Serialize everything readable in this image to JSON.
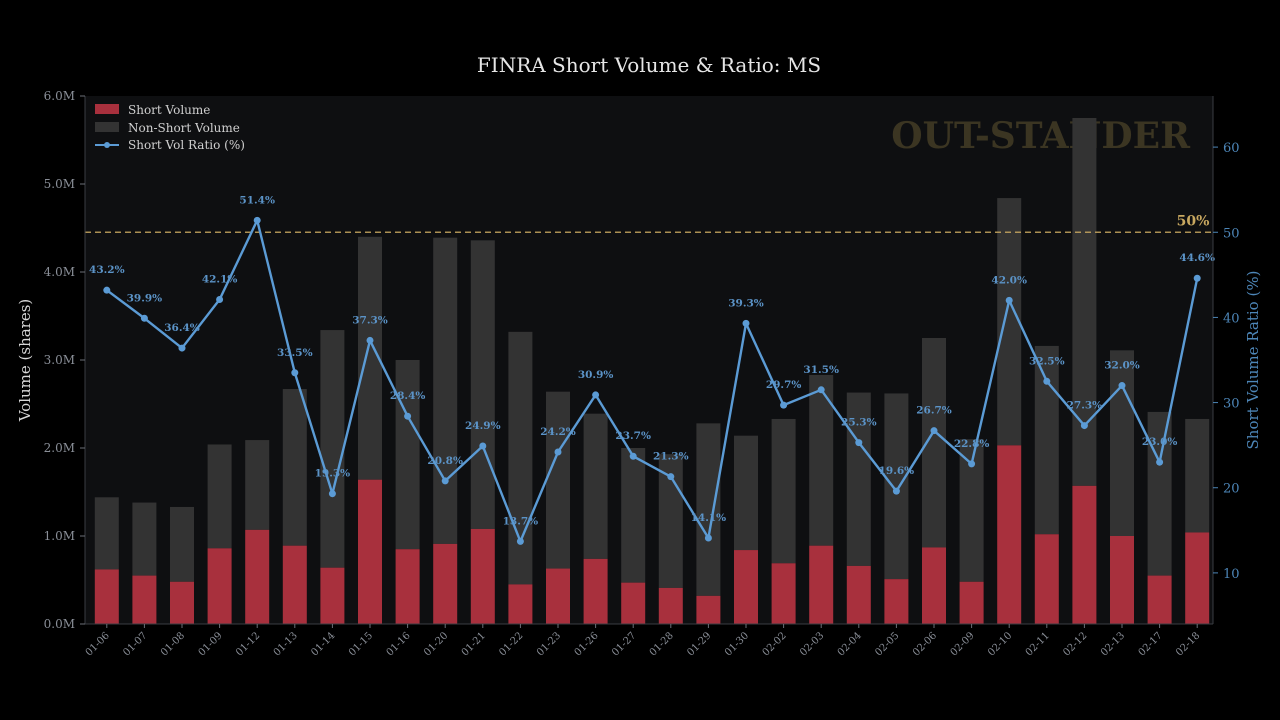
{
  "chart_data": {
    "type": "bar",
    "title": "FINRA Short Volume & Ratio: MS",
    "xlabel": "",
    "ylabel": "Volume (shares)",
    "y2label": "Short Volume Ratio (%)",
    "ylim": [
      0,
      6000000
    ],
    "y2lim": [
      4,
      66
    ],
    "y_ticks": [
      "0.0M",
      "1.0M",
      "2.0M",
      "3.0M",
      "4.0M",
      "5.0M",
      "6.0M"
    ],
    "y2_ticks": [
      "10",
      "20",
      "30",
      "40",
      "50",
      "60"
    ],
    "categories": [
      "01-06",
      "01-07",
      "01-08",
      "01-09",
      "01-12",
      "01-13",
      "01-14",
      "01-15",
      "01-16",
      "01-20",
      "01-21",
      "01-22",
      "01-23",
      "01-26",
      "01-27",
      "01-28",
      "01-29",
      "01-30",
      "02-02",
      "02-03",
      "02-04",
      "02-05",
      "02-06",
      "02-09",
      "02-10",
      "02-11",
      "02-12",
      "02-13",
      "02-17",
      "02-18"
    ],
    "series": [
      {
        "name": "Short Volume",
        "kind": "bar",
        "color": "#a8303d",
        "values": [
          620000,
          550000,
          480000,
          860000,
          1070000,
          890000,
          640000,
          1640000,
          850000,
          910000,
          1080000,
          450000,
          630000,
          740000,
          470000,
          410000,
          320000,
          840000,
          690000,
          890000,
          660000,
          510000,
          870000,
          480000,
          2030000,
          1020000,
          1570000,
          1000000,
          550000,
          1040000
        ]
      },
      {
        "name": "Non-Short Volume",
        "kind": "bar-stacked",
        "color": "#333333",
        "values": [
          820000,
          830000,
          850000,
          1180000,
          1020000,
          1780000,
          2700000,
          2760000,
          2150000,
          3480000,
          3280000,
          2870000,
          2010000,
          1650000,
          1530000,
          1520000,
          1960000,
          1300000,
          1640000,
          1940000,
          1970000,
          2110000,
          2380000,
          1620000,
          2810000,
          2140000,
          4180000,
          2110000,
          1860000,
          1290000
        ]
      },
      {
        "name": "Short Vol Ratio (%)",
        "kind": "line",
        "color": "#5b9bd5",
        "values": [
          43.2,
          39.9,
          36.4,
          42.1,
          51.4,
          33.5,
          19.3,
          37.3,
          28.4,
          20.8,
          24.9,
          13.7,
          24.2,
          30.9,
          23.7,
          21.3,
          14.1,
          39.3,
          29.7,
          31.5,
          25.3,
          19.6,
          26.7,
          22.8,
          42.0,
          32.5,
          27.3,
          32.0,
          23.0,
          44.6
        ],
        "labels": [
          "43.2%",
          "39.9%",
          "36.4%",
          "42.1%",
          "51.4%",
          "33.5%",
          "19.3%",
          "37.3%",
          "28.4%",
          "20.8%",
          "24.9%",
          "13.7%",
          "24.2%",
          "30.9%",
          "23.7%",
          "21.3%",
          "14.1%",
          "39.3%",
          "29.7%",
          "31.5%",
          "25.3%",
          "19.6%",
          "26.7%",
          "22.8%",
          "42.0%",
          "32.5%",
          "27.3%",
          "32.0%",
          "23.0%",
          "44.6%"
        ]
      }
    ],
    "reference_line": {
      "value": 50,
      "label": "50%",
      "color": "#c8a860"
    },
    "watermark": "OUT-STANDER",
    "legend_position": "top-left",
    "grid": false
  }
}
